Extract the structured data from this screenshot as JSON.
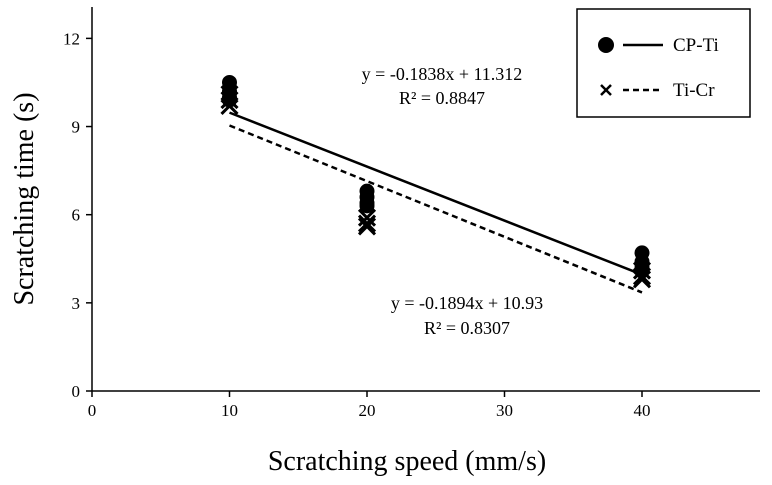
{
  "chart_data": {
    "type": "scatter",
    "title": "",
    "xlabel": "Scratching speed (mm/s)",
    "ylabel": "Scratching time  (s)",
    "xlim": [
      0,
      48
    ],
    "ylim": [
      0,
      13
    ],
    "xticks": [
      0,
      10,
      20,
      30,
      40
    ],
    "yticks": [
      0,
      3,
      6,
      9,
      12
    ],
    "grid": false,
    "legend_position": "top-right",
    "series": [
      {
        "name": "CP-Ti",
        "marker": "circle",
        "line_style": "solid",
        "color": "#000000",
        "x": [
          10,
          10,
          10,
          10,
          20,
          20,
          20,
          20,
          40,
          40,
          40,
          40
        ],
        "y": [
          10.5,
          10.2,
          10.0,
          9.9,
          6.8,
          6.6,
          6.4,
          6.3,
          4.7,
          4.4,
          4.3,
          4.2
        ],
        "trendline": {
          "slope": -0.1838,
          "intercept": 11.312,
          "x_range": [
            10,
            40
          ]
        },
        "equation": "y = -0.1838x + 11.312",
        "r2": "R² = 0.8847"
      },
      {
        "name": "Ti-Cr",
        "marker": "x",
        "line_style": "dashed",
        "color": "#000000",
        "x": [
          10,
          10,
          10,
          20,
          20,
          20,
          40,
          40,
          40
        ],
        "y": [
          10.1,
          9.9,
          9.7,
          5.9,
          5.7,
          5.6,
          4.1,
          3.9,
          3.8
        ],
        "trendline": {
          "slope": -0.1894,
          "intercept": 10.93,
          "x_range": [
            10,
            40
          ]
        },
        "equation": "y = -0.1894x + 10.93",
        "r2": "R² = 0.8307"
      }
    ]
  }
}
